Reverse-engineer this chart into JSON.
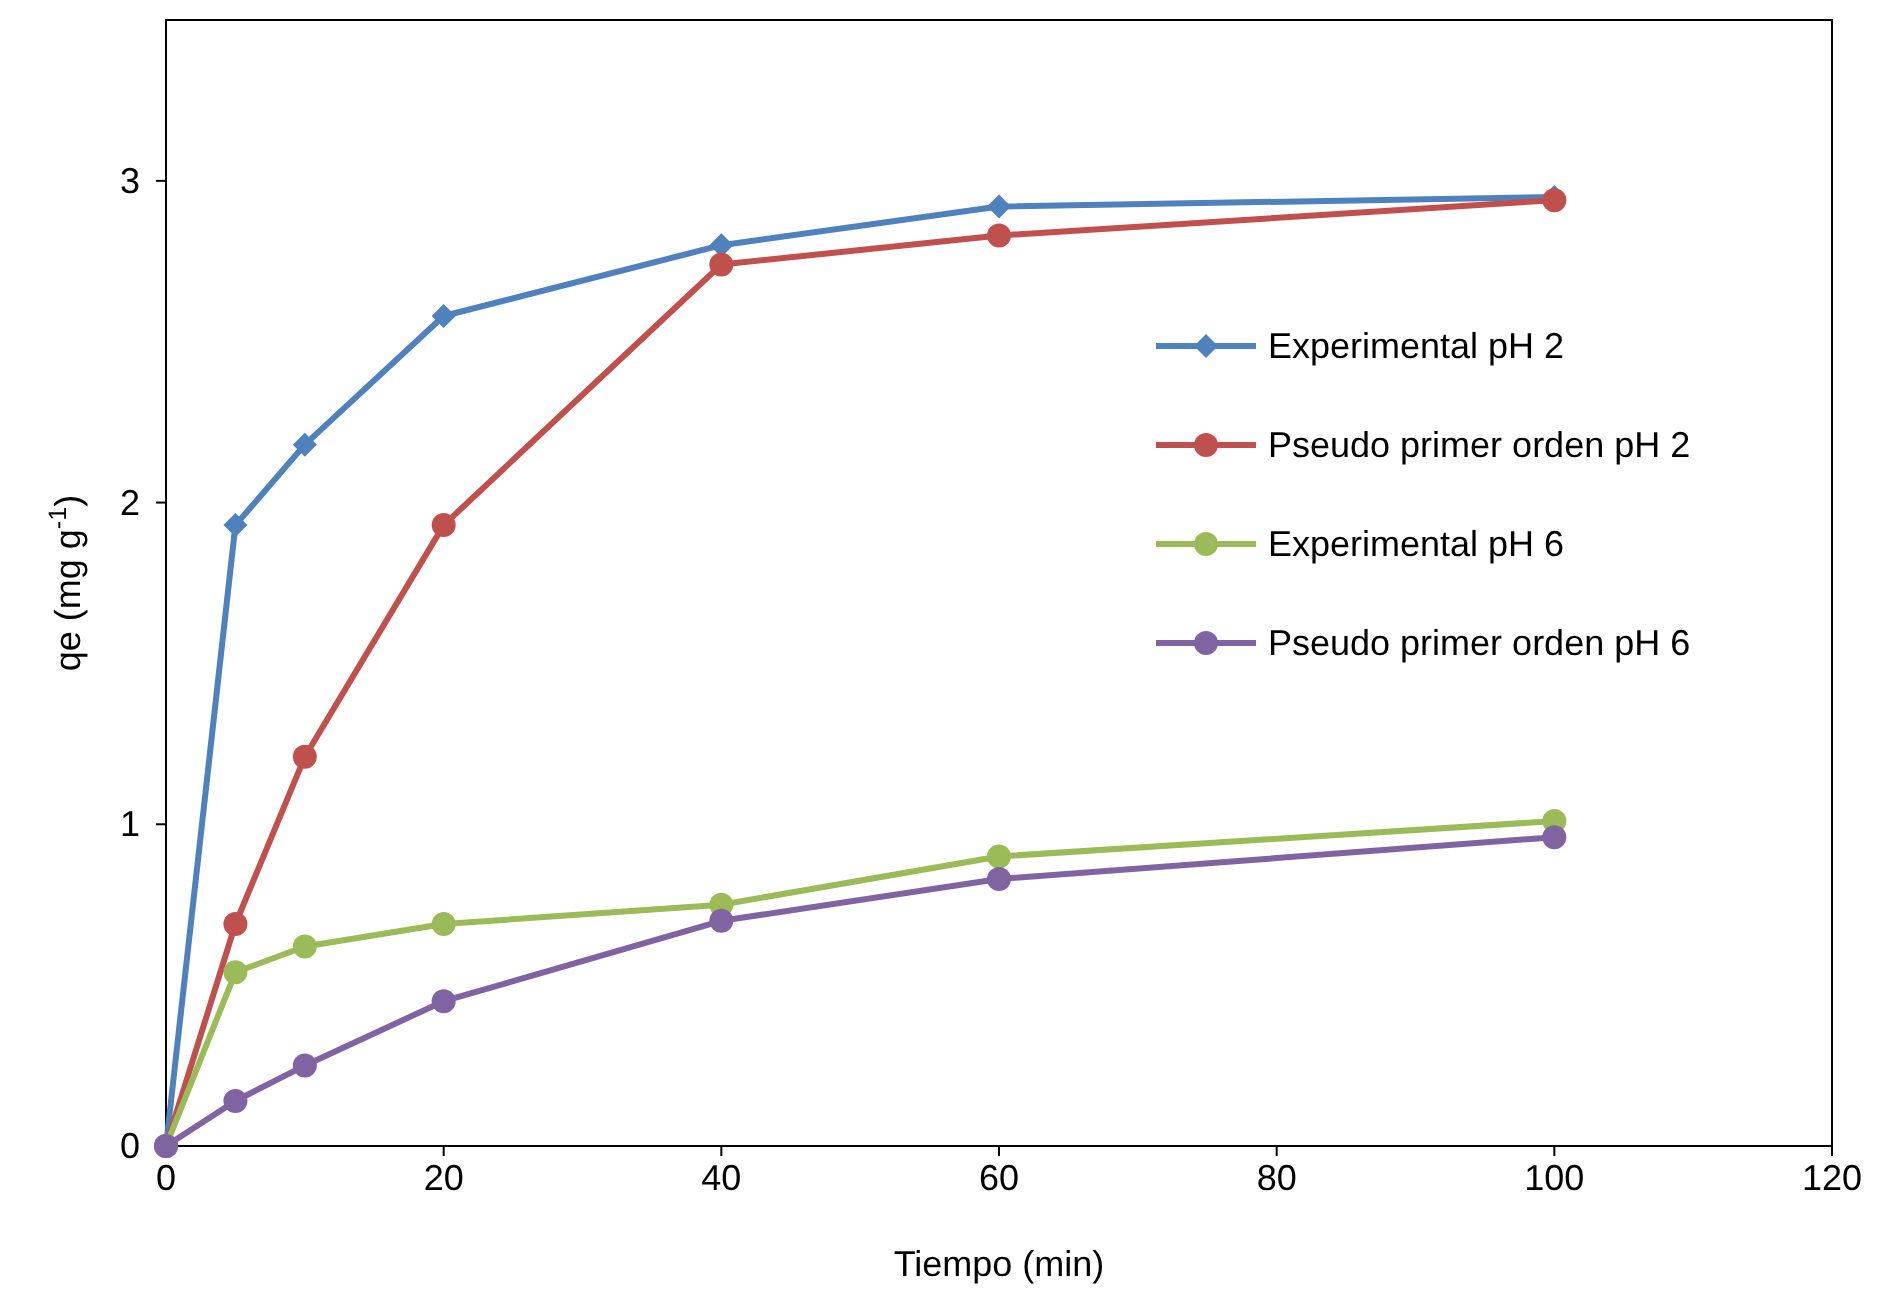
{
  "chart_data": {
    "type": "line",
    "xlabel": "Tiempo (min)",
    "ylabel": "qe (mg g$^{-1}$)",
    "x": [
      0,
      5,
      10,
      20,
      40,
      60,
      100
    ],
    "xlim": [
      0,
      120
    ],
    "xticks": [
      0,
      20,
      40,
      60,
      80,
      100,
      120
    ],
    "ylim": [
      0,
      3.5
    ],
    "yticks": [
      0,
      1,
      2,
      3
    ],
    "grid": false,
    "legend": "right",
    "line_style": "solid",
    "series": [
      {
        "name": "Experimental pH 2",
        "color": "#4f81bd",
        "marker": "diamond",
        "values": [
          0,
          1.93,
          2.18,
          2.58,
          2.8,
          2.92,
          2.95
        ]
      },
      {
        "name": "Pseudo primer orden pH 2",
        "color": "#c0504d",
        "marker": "circle",
        "values": [
          0,
          0.69,
          1.21,
          1.93,
          2.74,
          2.83,
          2.94
        ]
      },
      {
        "name": "Experimental pH 6",
        "color": "#9bbb59",
        "marker": "circle",
        "values": [
          0,
          0.54,
          0.62,
          0.69,
          0.75,
          0.9,
          1.01
        ]
      },
      {
        "name": "Pseudo primer orden pH 6",
        "color": "#8064a2",
        "marker": "circle",
        "values": [
          0,
          0.14,
          0.25,
          0.45,
          0.7,
          0.83,
          0.96
        ]
      }
    ]
  }
}
